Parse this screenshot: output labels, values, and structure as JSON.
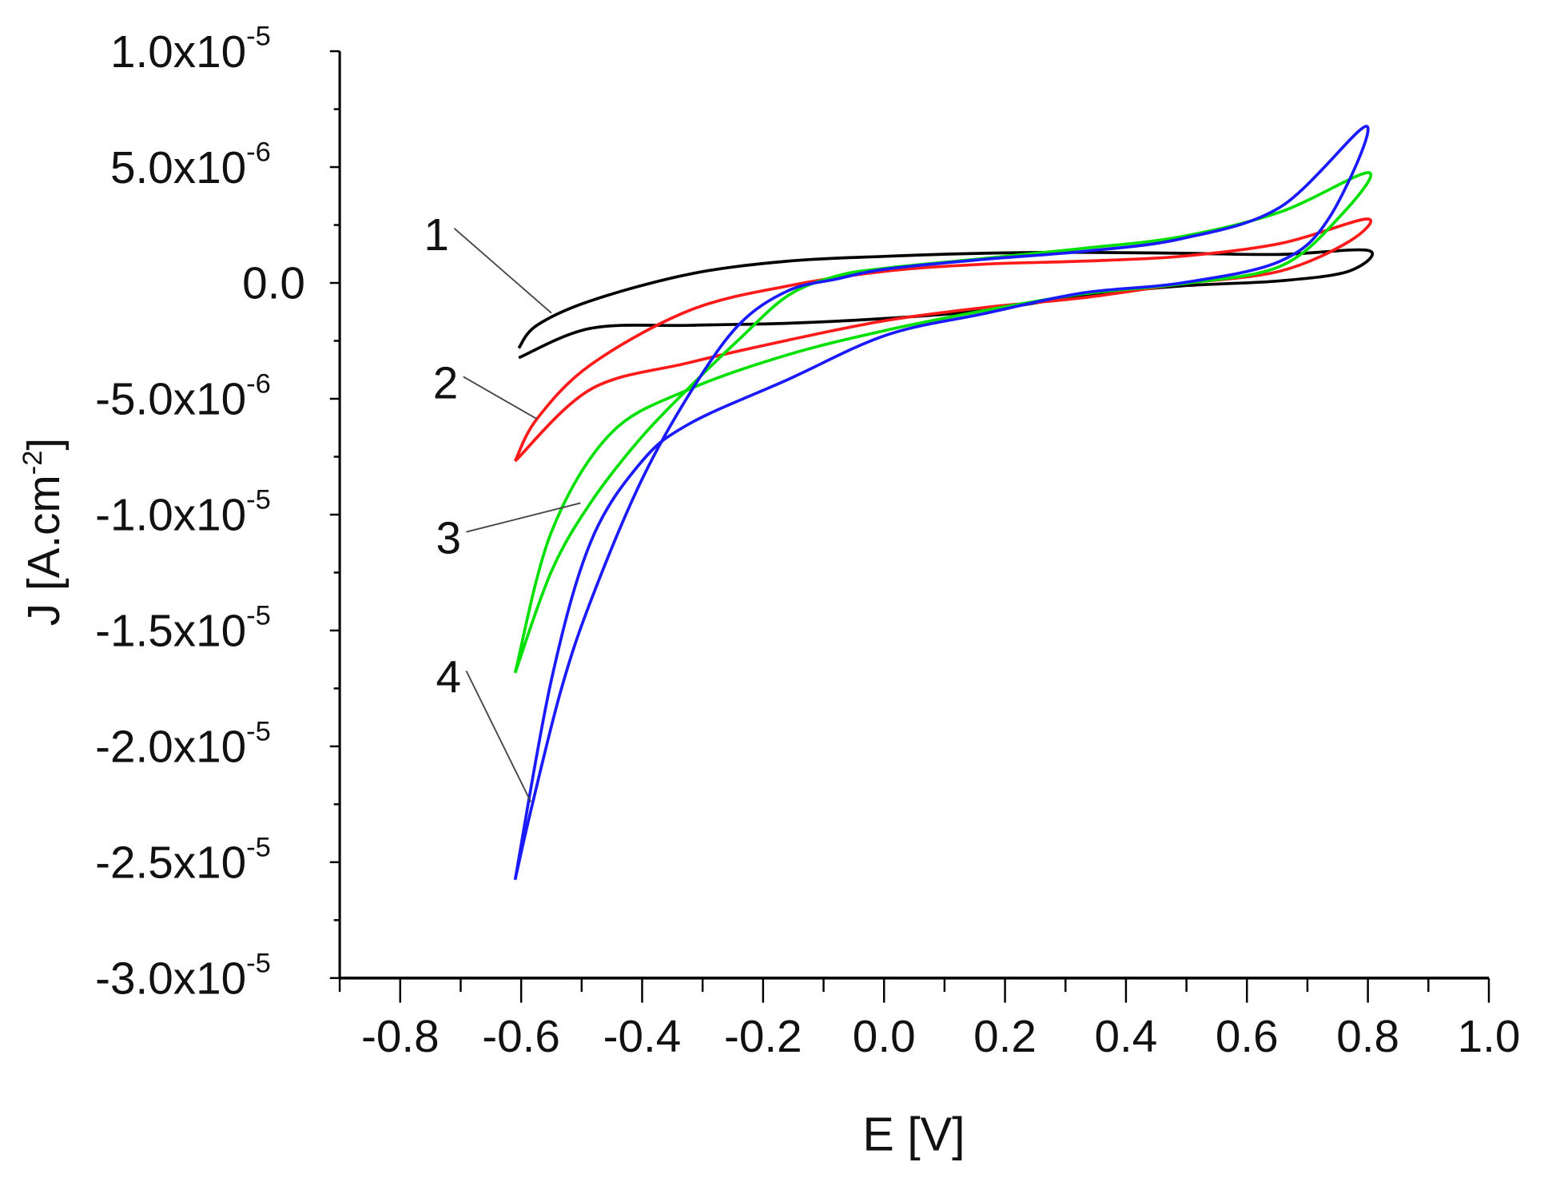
{
  "chart_data": {
    "type": "line",
    "title": "",
    "xlabel": "E [V]",
    "ylabel": "J [A.cm-2]",
    "ylabel_main": "J [A.cm",
    "ylabel_sup": "-2",
    "ylabel_end": "]",
    "xlim": [
      -0.9,
      1.0
    ],
    "ylim": [
      -3e-05,
      1e-05
    ],
    "x_ticks": [
      -0.8,
      -0.6,
      -0.4,
      -0.2,
      0.0,
      0.2,
      0.4,
      0.6,
      0.8,
      1.0
    ],
    "x_tick_labels": [
      "-0.8",
      "-0.6",
      "-0.4",
      "-0.2",
      "0.0",
      "0.2",
      "0.4",
      "0.6",
      "0.8",
      "1.0"
    ],
    "y_ticks": [
      1e-05,
      5e-06,
      0,
      -5e-06,
      -1e-05,
      -1.5e-05,
      -2e-05,
      -2.5e-05,
      -3e-05
    ],
    "y_tick_labels": [
      {
        "mant": "1.0x10",
        "exp": "-5"
      },
      {
        "mant": "5.0x10",
        "exp": "-6"
      },
      {
        "mant": "0.0",
        "exp": ""
      },
      {
        "mant": "-5.0x10",
        "exp": "-6"
      },
      {
        "mant": "-1.0x10",
        "exp": "-5"
      },
      {
        "mant": "-1.5x10",
        "exp": "-5"
      },
      {
        "mant": "-2.0x10",
        "exp": "-5"
      },
      {
        "mant": "-2.5x10",
        "exp": "-5"
      },
      {
        "mant": "-3.0x10",
        "exp": "-5"
      }
    ],
    "grid": false,
    "y_unit_note": "series J values are in 1e-6 A.cm-2",
    "series": [
      {
        "name": "1",
        "color": "#000000",
        "E": [
          -0.604,
          -0.574,
          -0.485,
          -0.322,
          -0.159,
          0.004,
          0.166,
          0.329,
          0.492,
          0.655,
          0.801,
          0.769,
          0.655,
          0.492,
          0.329,
          0.166,
          0.004,
          -0.159,
          -0.322,
          -0.485,
          -0.604
        ],
        "J": [
          -2.81,
          -1.83,
          -0.77,
          0.38,
          0.94,
          1.15,
          1.28,
          1.32,
          1.28,
          1.23,
          1.4,
          0.51,
          0.09,
          -0.13,
          -0.55,
          -1.19,
          -1.53,
          -1.74,
          -1.83,
          -1.96,
          -3.23
        ],
        "label_pos": {
          "E": -0.74,
          "J": 2.1
        },
        "leader_to": {
          "E": -0.55,
          "J": -1.3
        }
      },
      {
        "name": "2",
        "color": "#ff1a1a",
        "E": [
          -0.61,
          -0.574,
          -0.485,
          -0.322,
          -0.159,
          0.004,
          0.166,
          0.329,
          0.492,
          0.655,
          0.798,
          0.769,
          0.655,
          0.492,
          0.329,
          0.166,
          0.004,
          -0.159,
          -0.322,
          -0.485,
          -0.61
        ],
        "J": [
          -7.69,
          -5.87,
          -3.53,
          -1.19,
          -0.13,
          0.51,
          0.81,
          0.94,
          1.15,
          1.7,
          2.76,
          1.79,
          0.51,
          -0.04,
          -0.64,
          -1.06,
          -1.62,
          -2.47,
          -3.44,
          -4.59,
          -7.69
        ],
        "label_pos": {
          "E": -0.725,
          "J": -4.3
        },
        "leader_to": {
          "E": -0.574,
          "J": -5.87
        }
      },
      {
        "name": "3",
        "color": "#00e000",
        "E": [
          -0.61,
          -0.55,
          -0.485,
          -0.403,
          -0.322,
          -0.241,
          -0.159,
          -0.078,
          0.004,
          0.166,
          0.329,
          0.492,
          0.655,
          0.801,
          0.753,
          0.655,
          0.492,
          0.329,
          0.166,
          0.004,
          -0.159,
          -0.322,
          -0.452,
          -0.55,
          -0.61
        ],
        "J": [
          -16.83,
          -12.45,
          -9.48,
          -6.72,
          -4.51,
          -2.47,
          -0.55,
          0.3,
          0.64,
          1.06,
          1.49,
          2.0,
          3.06,
          4.76,
          2.85,
          0.72,
          -0.04,
          -0.47,
          -1.19,
          -2.04,
          -3.1,
          -4.59,
          -6.5,
          -10.75,
          -16.83
        ],
        "label_pos": {
          "E": -0.72,
          "J": -11.0
        },
        "leader_to": {
          "E": -0.502,
          "J": -9.5
        }
      },
      {
        "name": "4",
        "color": "#1a1aff",
        "E": [
          -0.61,
          -0.583,
          -0.534,
          -0.485,
          -0.403,
          -0.322,
          -0.241,
          -0.159,
          -0.078,
          0.004,
          0.166,
          0.329,
          0.492,
          0.655,
          0.798,
          0.737,
          0.655,
          0.492,
          0.329,
          0.166,
          0.004,
          -0.159,
          -0.322,
          -0.403,
          -0.485,
          -0.55,
          -0.61
        ],
        "J": [
          -25.76,
          -22.66,
          -17.56,
          -13.73,
          -8.63,
          -4.8,
          -1.83,
          -0.34,
          0.17,
          0.6,
          1.02,
          1.36,
          1.91,
          3.27,
          6.76,
          2.85,
          0.94,
          0.0,
          -0.43,
          -1.32,
          -2.25,
          -4.17,
          -6.08,
          -7.78,
          -11.18,
          -17.13,
          -25.76
        ],
        "label_pos": {
          "E": -0.72,
          "J": -17.0
        },
        "leader_to": {
          "E": -0.584,
          "J": -22.4
        }
      }
    ]
  }
}
